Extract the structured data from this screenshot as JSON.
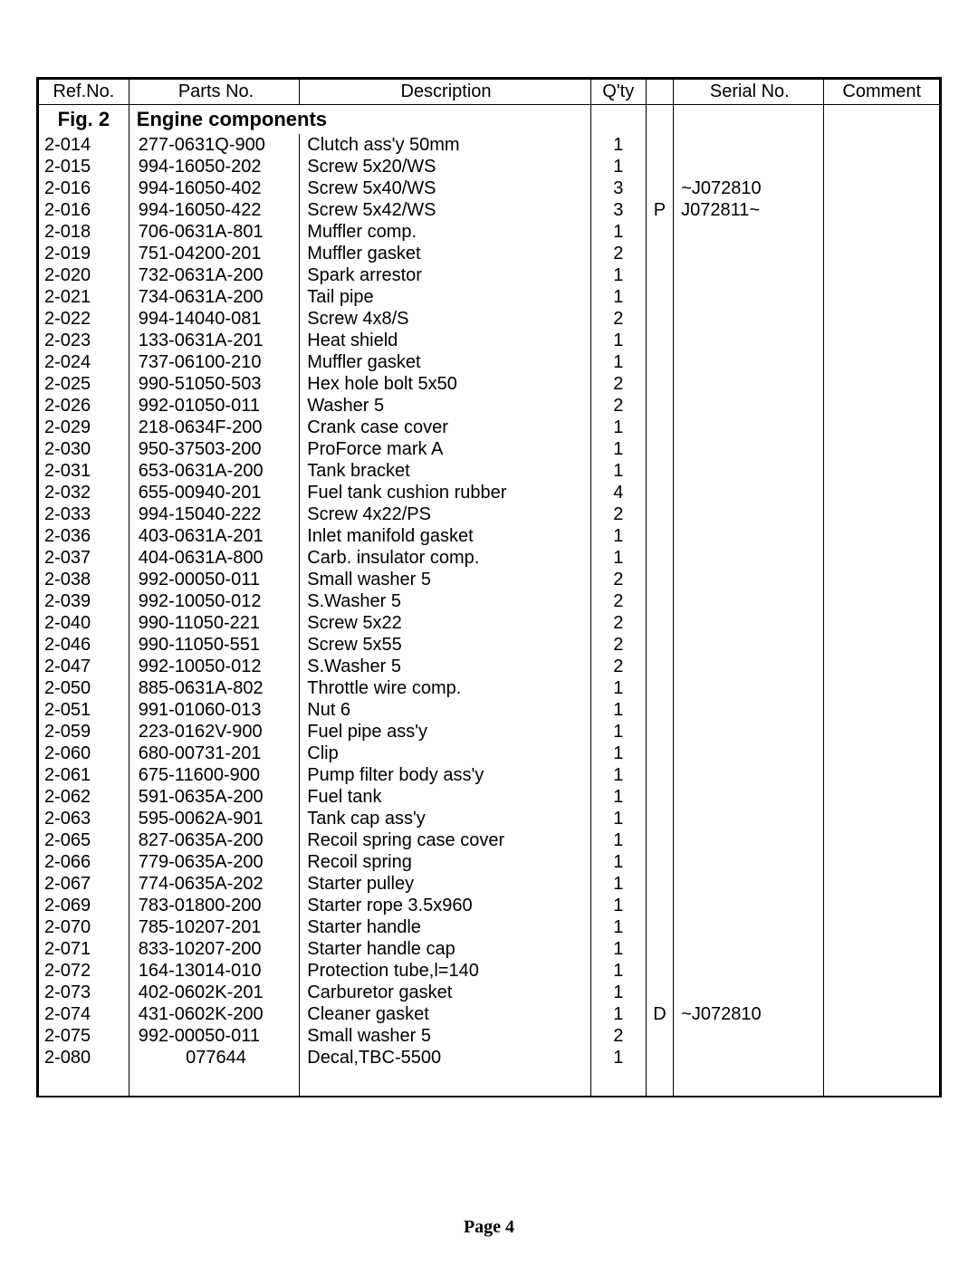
{
  "headers": {
    "ref": "Ref.No.",
    "parts": "Parts No.",
    "desc": "Description",
    "qty": "Q'ty",
    "flag": "",
    "serial": "Serial No.",
    "comment": "Comment"
  },
  "section": {
    "fig": "Fig. 2",
    "title": "Engine components"
  },
  "rows": [
    {
      "ref": "2-014",
      "parts": "277-0631Q-900",
      "desc": "Clutch ass'y  50mm",
      "qty": "1",
      "flag": "",
      "serial": "",
      "comment": ""
    },
    {
      "ref": "2-015",
      "parts": "994-16050-202",
      "desc": "Screw  5x20/WS",
      "qty": "1",
      "flag": "",
      "serial": "",
      "comment": ""
    },
    {
      "ref": "2-016",
      "parts": "994-16050-402",
      "desc": "Screw  5x40/WS",
      "qty": "3",
      "flag": "",
      "serial": "~J072810",
      "comment": ""
    },
    {
      "ref": "2-016",
      "parts": "994-16050-422",
      "desc": "Screw  5x42/WS",
      "qty": "3",
      "flag": "P",
      "serial": "J072811~",
      "comment": ""
    },
    {
      "ref": "2-018",
      "parts": "706-0631A-801",
      "desc": "Muffler  comp.",
      "qty": "1",
      "flag": "",
      "serial": "",
      "comment": ""
    },
    {
      "ref": "2-019",
      "parts": "751-04200-201",
      "desc": "Muffler  gasket",
      "qty": "2",
      "flag": "",
      "serial": "",
      "comment": ""
    },
    {
      "ref": "2-020",
      "parts": "732-0631A-200",
      "desc": "Spark  arrestor",
      "qty": "1",
      "flag": "",
      "serial": "",
      "comment": ""
    },
    {
      "ref": "2-021",
      "parts": "734-0631A-200",
      "desc": "Tail  pipe",
      "qty": "1",
      "flag": "",
      "serial": "",
      "comment": ""
    },
    {
      "ref": "2-022",
      "parts": "994-14040-081",
      "desc": "Screw  4x8/S",
      "qty": "2",
      "flag": "",
      "serial": "",
      "comment": ""
    },
    {
      "ref": "2-023",
      "parts": "133-0631A-201",
      "desc": "Heat  shield",
      "qty": "1",
      "flag": "",
      "serial": "",
      "comment": ""
    },
    {
      "ref": "2-024",
      "parts": "737-06100-210",
      "desc": "Muffler  gasket",
      "qty": "1",
      "flag": "",
      "serial": "",
      "comment": ""
    },
    {
      "ref": "2-025",
      "parts": "990-51050-503",
      "desc": "Hex  hole  bolt  5x50",
      "qty": "2",
      "flag": "",
      "serial": "",
      "comment": ""
    },
    {
      "ref": "2-026",
      "parts": "992-01050-011",
      "desc": "Washer  5",
      "qty": "2",
      "flag": "",
      "serial": "",
      "comment": ""
    },
    {
      "ref": "2-029",
      "parts": "218-0634F-200",
      "desc": "Crank  case  cover",
      "qty": "1",
      "flag": "",
      "serial": "",
      "comment": ""
    },
    {
      "ref": "2-030",
      "parts": "950-37503-200",
      "desc": "ProForce  mark  A",
      "qty": "1",
      "flag": "",
      "serial": "",
      "comment": ""
    },
    {
      "ref": "2-031",
      "parts": "653-0631A-200",
      "desc": "Tank  bracket",
      "qty": "1",
      "flag": "",
      "serial": "",
      "comment": ""
    },
    {
      "ref": "2-032",
      "parts": "655-00940-201",
      "desc": "Fuel  tank  cushion  rubber",
      "qty": "4",
      "flag": "",
      "serial": "",
      "comment": ""
    },
    {
      "ref": "2-033",
      "parts": "994-15040-222",
      "desc": "Screw  4x22/PS",
      "qty": "2",
      "flag": "",
      "serial": "",
      "comment": ""
    },
    {
      "ref": "2-036",
      "parts": "403-0631A-201",
      "desc": "Inlet  manifold  gasket",
      "qty": "1",
      "flag": "",
      "serial": "",
      "comment": ""
    },
    {
      "ref": "2-037",
      "parts": "404-0631A-800",
      "desc": "Carb.  insulator  comp.",
      "qty": "1",
      "flag": "",
      "serial": "",
      "comment": ""
    },
    {
      "ref": "2-038",
      "parts": "992-00050-011",
      "desc": "Small  washer  5",
      "qty": "2",
      "flag": "",
      "serial": "",
      "comment": ""
    },
    {
      "ref": "2-039",
      "parts": "992-10050-012",
      "desc": "S.Washer  5",
      "qty": "2",
      "flag": "",
      "serial": "",
      "comment": ""
    },
    {
      "ref": "2-040",
      "parts": "990-11050-221",
      "desc": "Screw  5x22",
      "qty": "2",
      "flag": "",
      "serial": "",
      "comment": ""
    },
    {
      "ref": "2-046",
      "parts": "990-11050-551",
      "desc": "Screw  5x55",
      "qty": "2",
      "flag": "",
      "serial": "",
      "comment": ""
    },
    {
      "ref": "2-047",
      "parts": "992-10050-012",
      "desc": "S.Washer  5",
      "qty": "2",
      "flag": "",
      "serial": "",
      "comment": ""
    },
    {
      "ref": "2-050",
      "parts": "885-0631A-802",
      "desc": "Throttle  wire  comp.",
      "qty": "1",
      "flag": "",
      "serial": "",
      "comment": ""
    },
    {
      "ref": "2-051",
      "parts": "991-01060-013",
      "desc": "Nut  6",
      "qty": "1",
      "flag": "",
      "serial": "",
      "comment": ""
    },
    {
      "ref": "2-059",
      "parts": "223-0162V-900",
      "desc": "Fuel  pipe  ass'y",
      "qty": "1",
      "flag": "",
      "serial": "",
      "comment": ""
    },
    {
      "ref": "2-060",
      "parts": "680-00731-201",
      "desc": "Clip",
      "qty": "1",
      "flag": "",
      "serial": "",
      "comment": ""
    },
    {
      "ref": "2-061",
      "parts": "675-11600-900",
      "desc": "Pump  filter  body  ass'y",
      "qty": "1",
      "flag": "",
      "serial": "",
      "comment": ""
    },
    {
      "ref": "2-062",
      "parts": "591-0635A-200",
      "desc": "Fuel  tank",
      "qty": "1",
      "flag": "",
      "serial": "",
      "comment": ""
    },
    {
      "ref": "2-063",
      "parts": "595-0062A-901",
      "desc": "Tank  cap  ass'y",
      "qty": "1",
      "flag": "",
      "serial": "",
      "comment": ""
    },
    {
      "ref": "2-065",
      "parts": "827-0635A-200",
      "desc": "Recoil  spring  case  cover",
      "qty": "1",
      "flag": "",
      "serial": "",
      "comment": ""
    },
    {
      "ref": "2-066",
      "parts": "779-0635A-200",
      "desc": "Recoil  spring",
      "qty": "1",
      "flag": "",
      "serial": "",
      "comment": ""
    },
    {
      "ref": "2-067",
      "parts": "774-0635A-202",
      "desc": "Starter  pulley",
      "qty": "1",
      "flag": "",
      "serial": "",
      "comment": ""
    },
    {
      "ref": "2-069",
      "parts": "783-01800-200",
      "desc": "Starter  rope  3.5x960",
      "qty": "1",
      "flag": "",
      "serial": "",
      "comment": ""
    },
    {
      "ref": "2-070",
      "parts": "785-10207-201",
      "desc": "Starter  handle",
      "qty": "1",
      "flag": "",
      "serial": "",
      "comment": ""
    },
    {
      "ref": "2-071",
      "parts": "833-10207-200",
      "desc": "Starter  handle  cap",
      "qty": "1",
      "flag": "",
      "serial": "",
      "comment": ""
    },
    {
      "ref": "2-072",
      "parts": "164-13014-010",
      "desc": "Protection  tube,l=140",
      "qty": "1",
      "flag": "",
      "serial": "",
      "comment": ""
    },
    {
      "ref": "2-073",
      "parts": "402-0602K-201",
      "desc": "Carburetor  gasket",
      "qty": "1",
      "flag": "",
      "serial": "",
      "comment": ""
    },
    {
      "ref": "2-074",
      "parts": "431-0602K-200",
      "desc": "Cleaner  gasket",
      "qty": "1",
      "flag": "D",
      "serial": "~J072810",
      "comment": ""
    },
    {
      "ref": "2-075",
      "parts": "992-00050-011",
      "desc": "Small  washer  5",
      "qty": "2",
      "flag": "",
      "serial": "",
      "comment": ""
    },
    {
      "ref": "2-080",
      "parts": "077644",
      "desc": "Decal,TBC-5500",
      "qty": "1",
      "flag": "",
      "serial": "",
      "comment": "",
      "partsCenter": true
    }
  ],
  "footer": "Page 4"
}
